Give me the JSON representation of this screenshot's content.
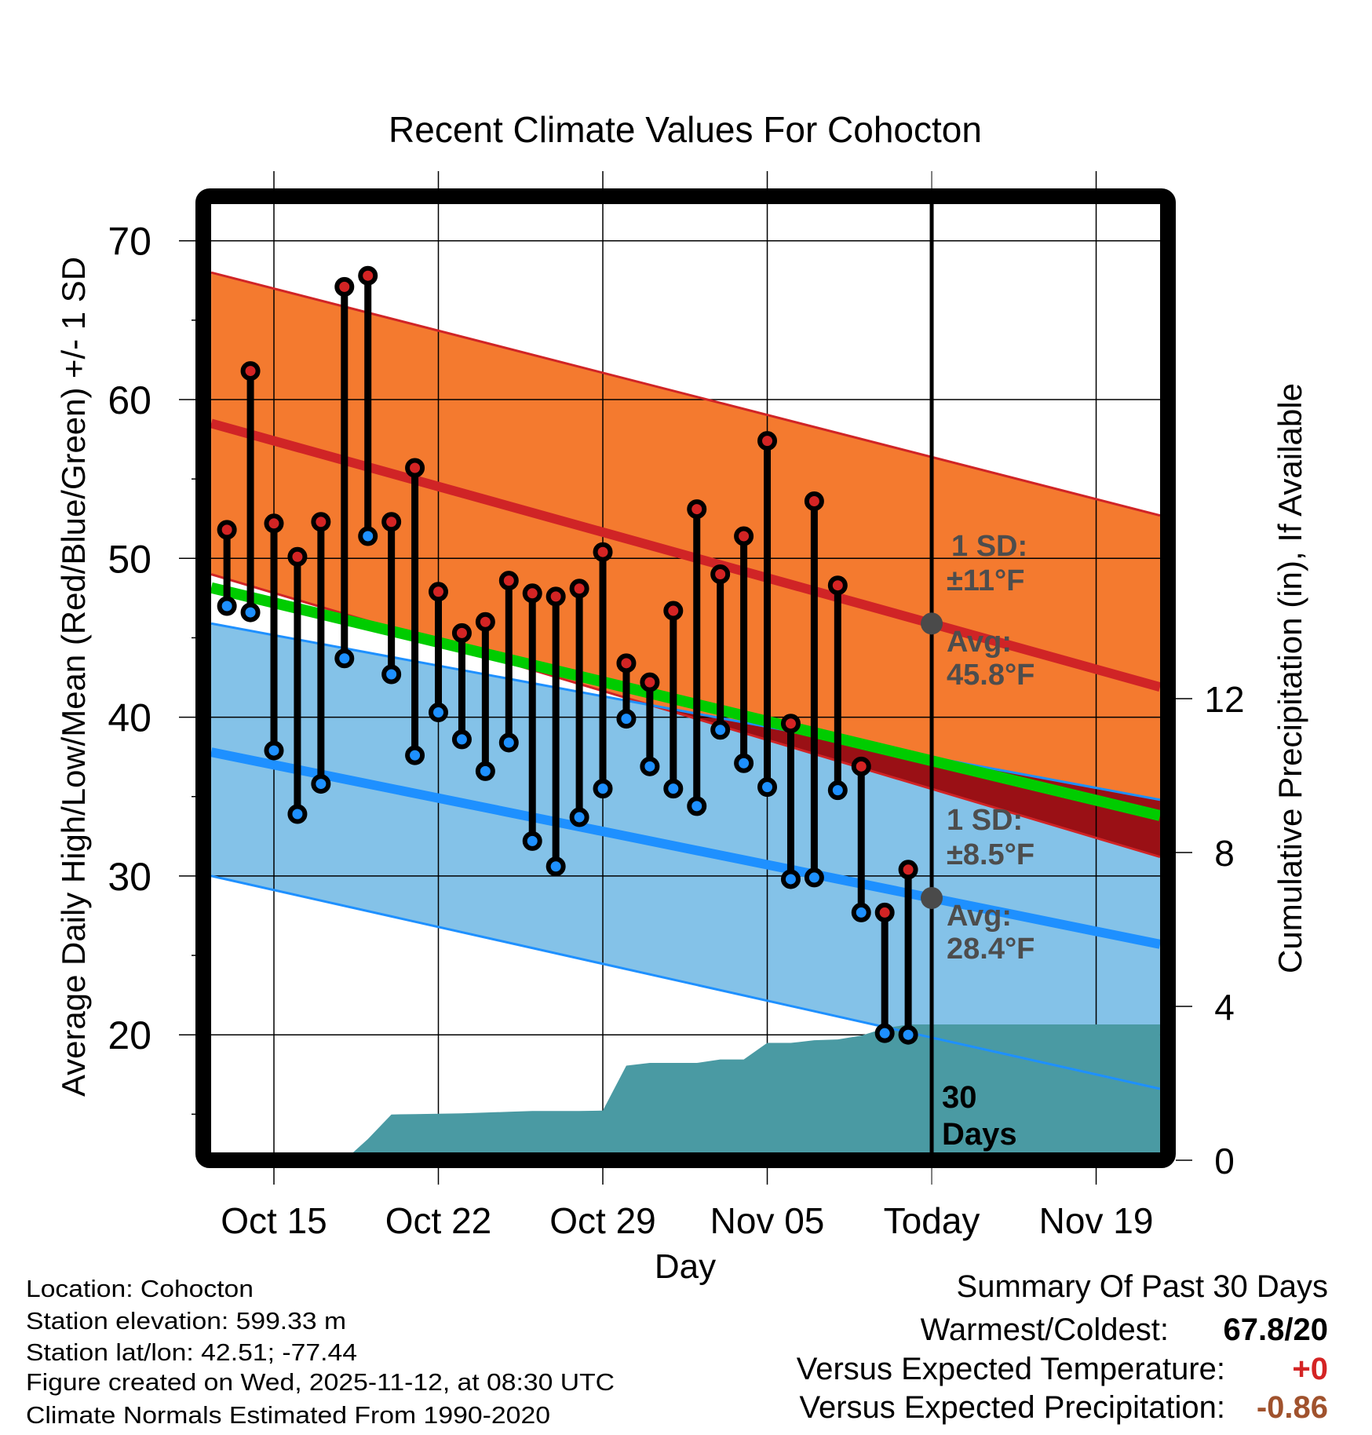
{
  "chart_data": {
    "type": "line",
    "title": "Recent Climate Values For Cohocton",
    "xlabel": "Day",
    "ylabel": "Average Daily High/Low/Mean (Red/Blue/Green) +/- 1 SD",
    "y2label": "Cumulative Precipitation (in), If Available",
    "ylim": [
      12,
      72.3
    ],
    "y2lim": [
      0,
      24.6
    ],
    "grid": true,
    "yticks": [
      "20",
      "30",
      "40",
      "50",
      "60",
      "70"
    ],
    "y2ticks": [
      "0",
      "4",
      "8",
      "12"
    ],
    "xticks": [
      "Oct 15",
      "Oct 22",
      "Oct 29",
      "Nov 05",
      "Today",
      "Nov 19"
    ],
    "dates": [
      "Oct 13",
      "Oct 14",
      "Oct 15",
      "Oct 16",
      "Oct 17",
      "Oct 18",
      "Oct 19",
      "Oct 20",
      "Oct 21",
      "Oct 22",
      "Oct 23",
      "Oct 24",
      "Oct 25",
      "Oct 26",
      "Oct 27",
      "Oct 28",
      "Oct 29",
      "Oct 30",
      "Oct 31",
      "Nov 01",
      "Nov 02",
      "Nov 03",
      "Nov 04",
      "Nov 05",
      "Nov 06",
      "Nov 07",
      "Nov 08",
      "Nov 09",
      "Nov 10",
      "Nov 11"
    ],
    "series": [
      {
        "name": "Daily High",
        "color": "#d42424",
        "values": [
          51.8,
          61.8,
          52.2,
          50.1,
          52.3,
          67.1,
          67.8,
          52.3,
          55.7,
          47.9,
          45.3,
          46.0,
          48.6,
          47.8,
          47.6,
          48.1,
          50.4,
          43.4,
          42.2,
          46.7,
          53.1,
          49.0,
          51.4,
          57.4,
          39.6,
          53.6,
          48.3,
          36.9,
          27.7,
          30.4
        ]
      },
      {
        "name": "Daily Low",
        "color": "#1e90ff",
        "values": [
          47.0,
          46.6,
          37.9,
          33.9,
          35.8,
          43.7,
          51.4,
          42.7,
          37.6,
          40.3,
          38.6,
          36.6,
          38.4,
          32.2,
          30.6,
          33.7,
          35.5,
          39.9,
          36.9,
          35.5,
          34.4,
          39.2,
          37.1,
          35.6,
          29.8,
          29.9,
          35.4,
          27.7,
          20.1,
          20.0
        ]
      },
      {
        "name": "Cumulative Precipitation (in)",
        "color": "#4a9aa3",
        "values": [
          0,
          0,
          0,
          0,
          0,
          0,
          0.55,
          1.19,
          1.2,
          1.21,
          1.22,
          1.24,
          1.26,
          1.28,
          1.28,
          1.28,
          1.29,
          2.46,
          2.53,
          2.53,
          2.53,
          2.62,
          2.62,
          3.05,
          3.05,
          3.12,
          3.14,
          3.24,
          3.43,
          3.53
        ]
      }
    ],
    "normals": {
      "x_days_from_oct15": [
        -2.67,
        37.72
      ],
      "high_mean": [
        58.5,
        41.9
      ],
      "high_upper": [
        68.0,
        52.7
      ],
      "high_lower": [
        49.0,
        31.2
      ],
      "low_mean": [
        37.8,
        25.7
      ],
      "low_upper": [
        45.9,
        34.8
      ],
      "low_lower": [
        30.0,
        16.6
      ]
    },
    "annotations": {
      "high_sd_label": "1 SD:",
      "high_sd_value": "±11°F",
      "high_avg_label": "Avg:",
      "high_avg_value": "45.8°F",
      "low_sd_label": "1 SD:",
      "low_sd_value": "±8.5°F",
      "low_avg_label": "Avg:",
      "low_avg_value": "28.4°F",
      "window_label_1": "30",
      "window_label_2": "Days"
    },
    "colors": {
      "high_band": "#f47a2f",
      "high_line": "#d02426",
      "overlap": "#9a1015",
      "mean_line": "#00cc00",
      "low_band": "#84c2e8",
      "low_line": "#1e90ff",
      "precip": "#4a9aa3",
      "marker_avg": "#4a4a4a"
    }
  },
  "footer": {
    "location": "Location: Cohocton",
    "elevation": "Station elevation: 599.33 m",
    "latlon": "Station lat/lon: 42.51; -77.44",
    "created": "Figure created on Wed, 2025-11-12, at 08:30 UTC",
    "normals": "Climate Normals Estimated From 1990-2020"
  },
  "summary": {
    "title": "Summary Of Past 30 Days",
    "warm_cold_label": "Warmest/Coldest:",
    "warm_cold_value": "67.8/20",
    "temp_label": "Versus Expected Temperature:",
    "temp_value": "+0",
    "temp_color": "#d42424",
    "precip_label": "Versus Expected Precipitation:",
    "precip_value": "-0.86",
    "precip_color": "#a0522d"
  }
}
